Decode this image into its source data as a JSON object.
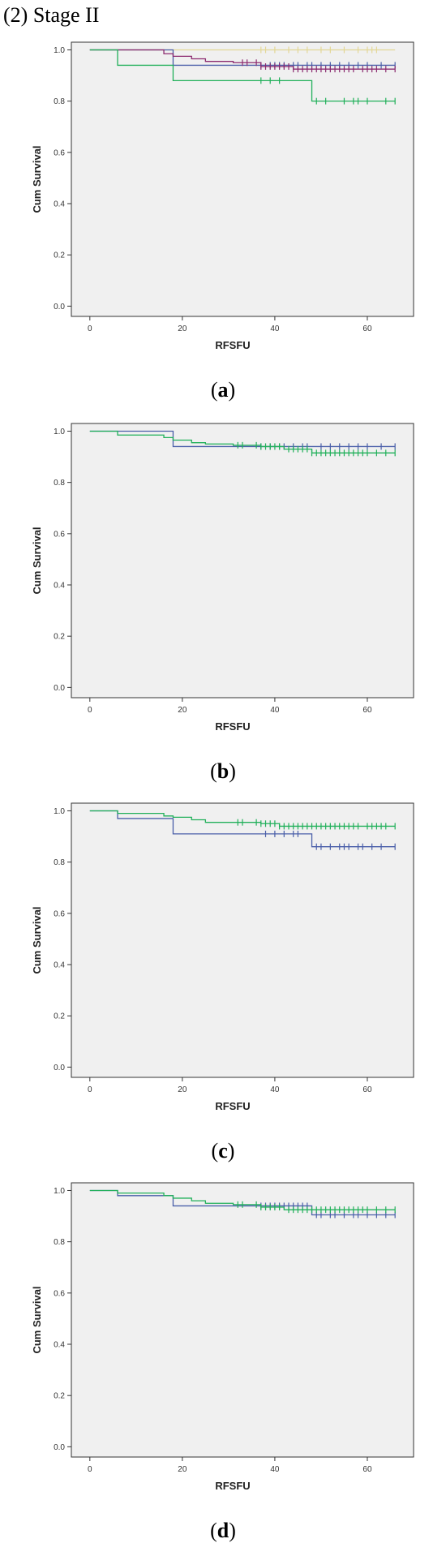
{
  "header": {
    "title": "(2) Stage II"
  },
  "chart_data": [
    {
      "type": "line",
      "caption": "a",
      "xlabel": "RFSFU",
      "ylabel": "Cum Survival",
      "xlim": [
        -4,
        70
      ],
      "ylim": [
        -0.04,
        1.03
      ],
      "xticks": [
        0,
        20,
        40,
        60
      ],
      "yticks": [
        0.0,
        0.2,
        0.4,
        0.6,
        0.8,
        1.0
      ],
      "grid": false,
      "series": [
        {
          "color": "#e3d796",
          "steps": [
            [
              0,
              1.0
            ],
            [
              66,
              1.0
            ]
          ],
          "censored": [
            37,
            38,
            40,
            43,
            45,
            47,
            50,
            52,
            55,
            58,
            60,
            61,
            62
          ]
        },
        {
          "color": "#4a5fa9",
          "steps": [
            [
              0,
              1.0
            ],
            [
              18,
              0.94
            ],
            [
              66,
              0.94
            ]
          ],
          "censored": [
            37,
            39,
            40,
            41,
            42,
            44,
            45,
            47,
            48,
            50,
            52,
            54,
            56,
            58,
            60,
            63,
            66
          ]
        },
        {
          "color": "#8b2a6f",
          "steps": [
            [
              0,
              1.0
            ],
            [
              16,
              0.985
            ],
            [
              18,
              0.975
            ],
            [
              22,
              0.965
            ],
            [
              25,
              0.955
            ],
            [
              31,
              0.95
            ],
            [
              37,
              0.935
            ],
            [
              44,
              0.925
            ],
            [
              66,
              0.925
            ]
          ],
          "censored": [
            33,
            34,
            36,
            37,
            38,
            39,
            40,
            41,
            42,
            43,
            44,
            45,
            46,
            47,
            48,
            49,
            50,
            51,
            52,
            53,
            54,
            55,
            56,
            57,
            59,
            60,
            61,
            62,
            64,
            66
          ]
        },
        {
          "color": "#21b05a",
          "steps": [
            [
              0,
              1.0
            ],
            [
              6,
              0.94
            ],
            [
              18,
              0.88
            ],
            [
              48,
              0.8
            ],
            [
              66,
              0.8
            ]
          ],
          "censored": [
            37,
            39,
            41,
            49,
            51,
            55,
            57,
            58,
            60,
            64,
            66
          ]
        }
      ]
    },
    {
      "type": "line",
      "caption": "b",
      "xlabel": "RFSFU",
      "ylabel": "Cum Survival",
      "xlim": [
        -4,
        70
      ],
      "ylim": [
        -0.04,
        1.03
      ],
      "xticks": [
        0,
        20,
        40,
        60
      ],
      "yticks": [
        0.0,
        0.2,
        0.4,
        0.6,
        0.8,
        1.0
      ],
      "grid": false,
      "series": [
        {
          "color": "#4a5fa9",
          "steps": [
            [
              0,
              1.0
            ],
            [
              18,
              0.94
            ],
            [
              66,
              0.94
            ]
          ],
          "censored": [
            37,
            39,
            41,
            42,
            44,
            46,
            47,
            50,
            52,
            54,
            56,
            58,
            60,
            63,
            66
          ]
        },
        {
          "color": "#21b05a",
          "steps": [
            [
              0,
              1.0
            ],
            [
              6,
              0.985
            ],
            [
              16,
              0.975
            ],
            [
              18,
              0.965
            ],
            [
              22,
              0.955
            ],
            [
              25,
              0.95
            ],
            [
              31,
              0.945
            ],
            [
              37,
              0.94
            ],
            [
              42,
              0.93
            ],
            [
              48,
              0.915
            ],
            [
              66,
              0.915
            ]
          ],
          "censored": [
            32,
            33,
            36,
            37,
            38,
            39,
            40,
            41,
            43,
            44,
            45,
            46,
            47,
            48,
            49,
            50,
            51,
            52,
            53,
            54,
            55,
            56,
            57,
            58,
            59,
            60,
            62,
            64,
            66
          ]
        }
      ]
    },
    {
      "type": "line",
      "caption": "c",
      "xlabel": "RFSFU",
      "ylabel": "Cum Survival",
      "xlim": [
        -4,
        70
      ],
      "ylim": [
        -0.04,
        1.03
      ],
      "xticks": [
        0,
        20,
        40,
        60
      ],
      "yticks": [
        0.0,
        0.2,
        0.4,
        0.6,
        0.8,
        1.0
      ],
      "grid": false,
      "series": [
        {
          "color": "#4a5fa9",
          "steps": [
            [
              0,
              1.0
            ],
            [
              6,
              0.97
            ],
            [
              18,
              0.91
            ],
            [
              48,
              0.86
            ],
            [
              66,
              0.86
            ]
          ],
          "censored": [
            38,
            40,
            42,
            44,
            45,
            49,
            50,
            52,
            54,
            55,
            56,
            58,
            59,
            61,
            63,
            66
          ]
        },
        {
          "color": "#21b05a",
          "steps": [
            [
              0,
              1.0
            ],
            [
              6,
              0.99
            ],
            [
              16,
              0.98
            ],
            [
              18,
              0.975
            ],
            [
              22,
              0.965
            ],
            [
              25,
              0.955
            ],
            [
              37,
              0.95
            ],
            [
              41,
              0.94
            ],
            [
              66,
              0.94
            ]
          ],
          "censored": [
            32,
            33,
            36,
            37,
            38,
            39,
            40,
            41,
            42,
            43,
            44,
            45,
            46,
            47,
            48,
            49,
            50,
            51,
            52,
            53,
            54,
            55,
            56,
            57,
            58,
            60,
            61,
            62,
            63,
            64,
            66
          ]
        }
      ]
    },
    {
      "type": "line",
      "caption": "d",
      "xlabel": "RFSFU",
      "ylabel": "Cum Survival",
      "xlim": [
        -4,
        70
      ],
      "ylim": [
        -0.04,
        1.03
      ],
      "xticks": [
        0,
        20,
        40,
        60
      ],
      "yticks": [
        0.0,
        0.2,
        0.4,
        0.6,
        0.8,
        1.0
      ],
      "grid": false,
      "series": [
        {
          "color": "#4a5fa9",
          "steps": [
            [
              0,
              1.0
            ],
            [
              6,
              0.98
            ],
            [
              18,
              0.94
            ],
            [
              48,
              0.905
            ],
            [
              66,
              0.905
            ]
          ],
          "censored": [
            37,
            38,
            39,
            40,
            41,
            42,
            43,
            44,
            45,
            46,
            47,
            49,
            50,
            52,
            53,
            55,
            57,
            58,
            60,
            62,
            64,
            66
          ]
        },
        {
          "color": "#21b05a",
          "steps": [
            [
              0,
              1.0
            ],
            [
              6,
              0.99
            ],
            [
              16,
              0.98
            ],
            [
              18,
              0.97
            ],
            [
              22,
              0.96
            ],
            [
              25,
              0.95
            ],
            [
              31,
              0.945
            ],
            [
              37,
              0.935
            ],
            [
              42,
              0.925
            ],
            [
              66,
              0.925
            ]
          ],
          "censored": [
            32,
            33,
            36,
            37,
            38,
            39,
            40,
            41,
            43,
            44,
            45,
            46,
            47,
            48,
            49,
            50,
            51,
            52,
            53,
            54,
            55,
            56,
            57,
            58,
            59,
            60,
            62,
            64,
            66
          ]
        }
      ]
    }
  ]
}
